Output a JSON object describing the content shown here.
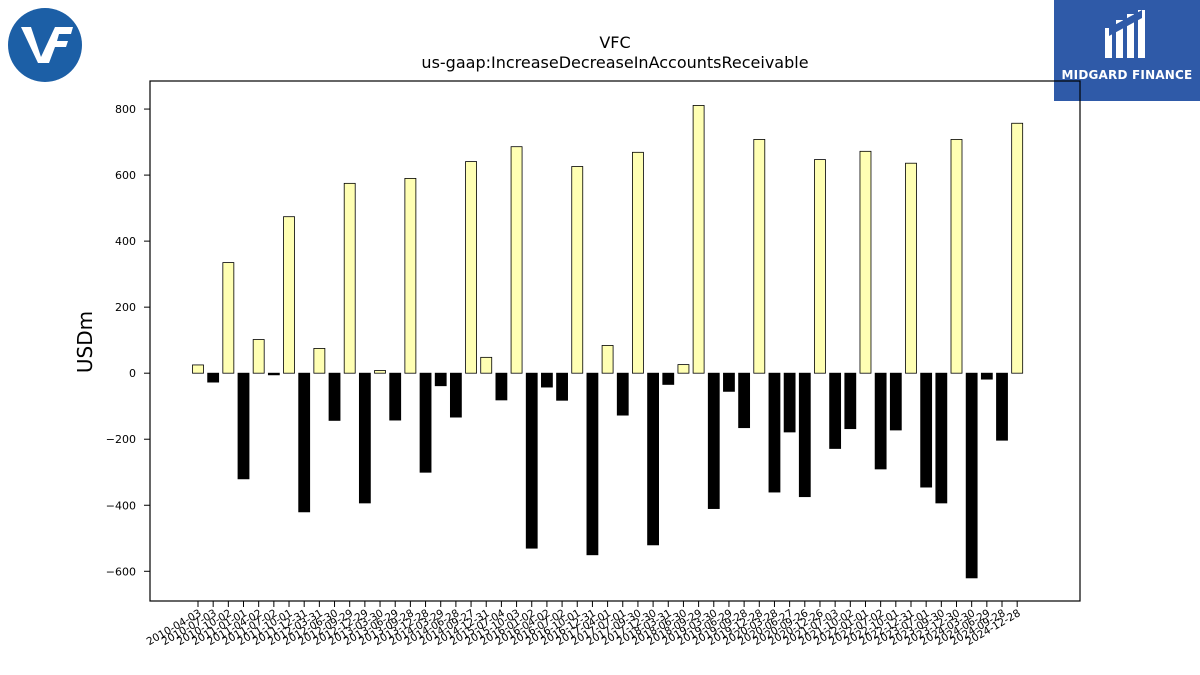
{
  "logos": {
    "left": {
      "name": "VF",
      "color": "#1c5fa6"
    },
    "right": {
      "text": "MIDGARD FINANCE",
      "color": "#2f5aa8"
    }
  },
  "chart_data": {
    "type": "bar",
    "title": "VFC",
    "subtitle": "us-gaap:IncreaseDecreaseInAccountsReceivable",
    "ylabel": "USDm",
    "xlabel": "",
    "ylim": [
      -690,
      885
    ],
    "yticks": [
      -600,
      -400,
      -200,
      0,
      200,
      400,
      600,
      800
    ],
    "grid": false,
    "colors": {
      "positive": "#ffffb3",
      "negative": "#000000",
      "edge": "#000000"
    },
    "categories": [
      "2010-04-03",
      "2010-07-03",
      "2010-10-02",
      "2011-01-01",
      "2011-04-02",
      "2011-07-02",
      "2011-10-01",
      "2011-12-31",
      "2012-03-31",
      "2012-06-30",
      "2012-09-29",
      "2012-12-29",
      "2013-03-30",
      "2013-06-29",
      "2013-09-28",
      "2013-12-28",
      "2014-03-29",
      "2014-06-28",
      "2014-09-27",
      "2014-12-31",
      "2015-07-04",
      "2015-10-03",
      "2016-01-02",
      "2016-04-02",
      "2016-07-02",
      "2016-10-01",
      "2016-12-31",
      "2017-04-01",
      "2017-07-01",
      "2017-09-30",
      "2017-12-30",
      "2018-03-31",
      "2018-06-30",
      "2018-09-29",
      "2019-03-30",
      "2019-06-29",
      "2019-09-28",
      "2019-12-28",
      "2020-03-28",
      "2020-06-27",
      "2020-09-26",
      "2020-12-26",
      "2021-07-03",
      "2021-10-02",
      "2022-01-01",
      "2022-07-02",
      "2022-10-01",
      "2022-12-31",
      "2023-07-01",
      "2023-09-30",
      "2023-12-30",
      "2024-03-30",
      "2024-06-29",
      "2024-09-28",
      "2024-12-28"
    ],
    "values": [
      25,
      -27,
      335,
      -320,
      102,
      -5,
      474,
      -420,
      75,
      -143,
      575,
      -393,
      8,
      -142,
      590,
      -300,
      -38,
      -133,
      641,
      48,
      -81,
      686,
      -530,
      -42,
      -82,
      626,
      -550,
      84,
      -127,
      669,
      -520,
      -34,
      26,
      811,
      -410,
      -55,
      -165,
      708,
      -360,
      -178,
      -374,
      647,
      -228,
      -168,
      672,
      -290,
      -172,
      636,
      -345,
      -393,
      708,
      -620,
      -18,
      -203,
      757
    ]
  }
}
